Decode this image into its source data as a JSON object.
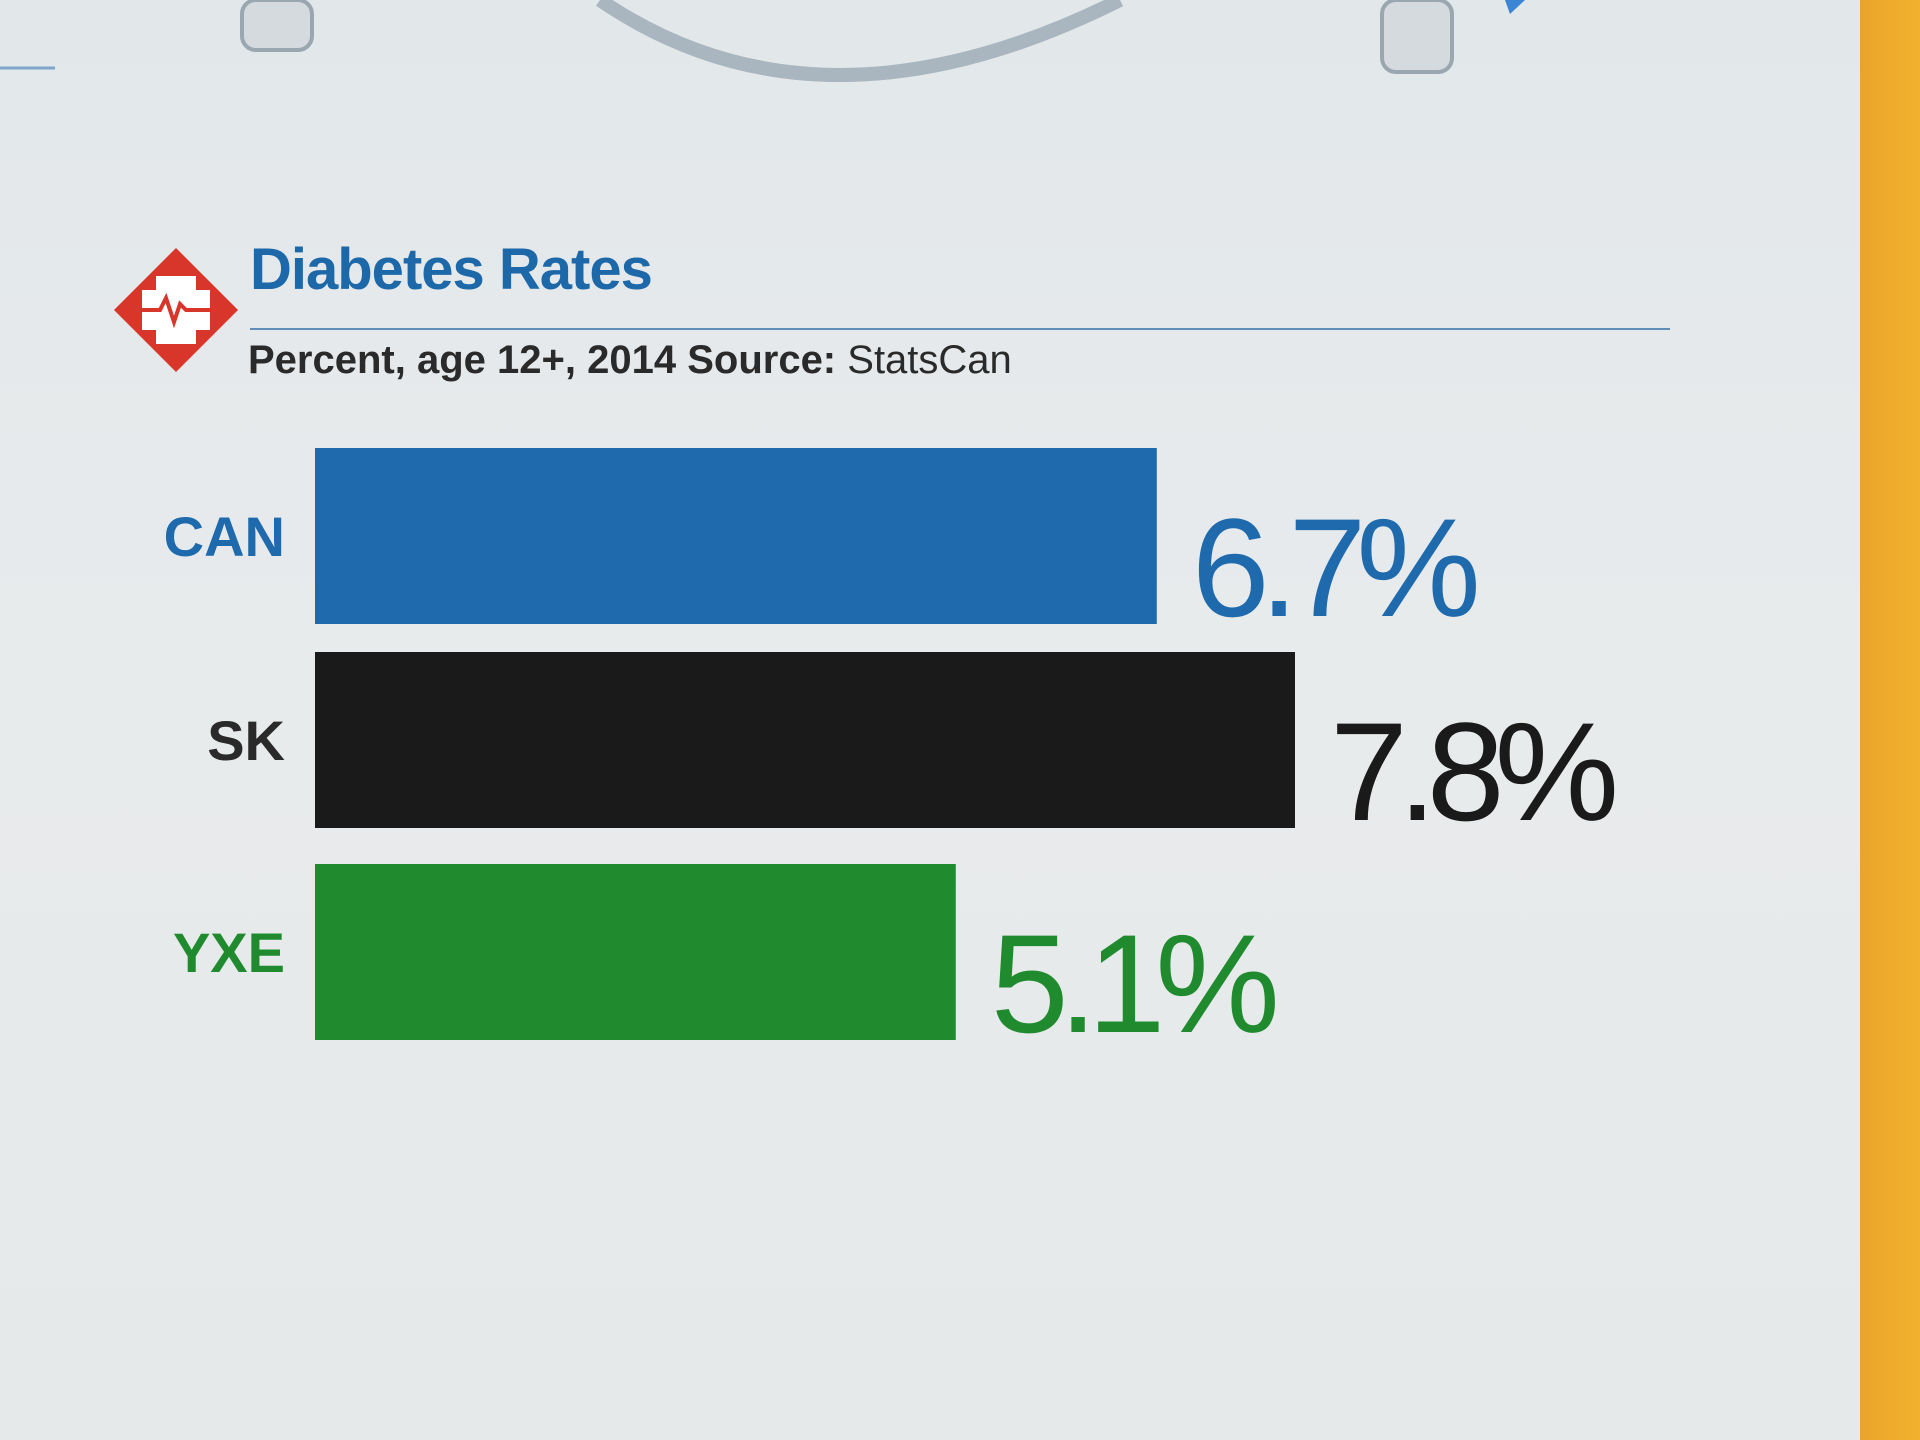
{
  "header": {
    "title": "Diabetes Rates",
    "subtitle_prefix": "Percent, age 12+, 2014",
    "source_label": "Source:",
    "source_value": "StatsCan",
    "icon": "medical-cross-heartbeat-icon"
  },
  "colors": {
    "can": "#1e6aad",
    "sk": "#1a1a1a",
    "yxe": "#1f8a2e",
    "title": "#1d68a8",
    "icon_red": "#d9362b"
  },
  "chart_data": {
    "type": "bar",
    "orientation": "horizontal",
    "title": "Diabetes Rates",
    "subtitle": "Percent, age 12+, 2014 Source: StatsCan",
    "categories": [
      "CAN",
      "SK",
      "YXE"
    ],
    "values": [
      6.7,
      7.8,
      5.1
    ],
    "value_labels": [
      "6.7%",
      "7.8%",
      "5.1%"
    ],
    "xlim": [
      0,
      7.8
    ],
    "grid": false,
    "legend": "none",
    "bar_colors": [
      "#1e6aad",
      "#1a1a1a",
      "#1f8a2e"
    ]
  }
}
